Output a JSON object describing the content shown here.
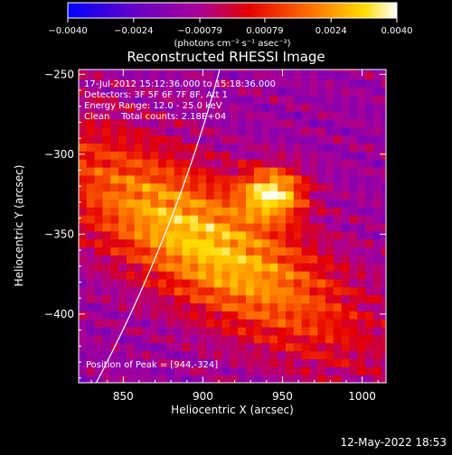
{
  "chart_data": {
    "type": "heatmap",
    "title": "Reconstructed RHESSI Image",
    "xlabel": "Heliocentric X (arcsec)",
    "ylabel": "Heliocentric Y (arcsec)",
    "xlim": [
      822,
      1015
    ],
    "ylim": [
      -443,
      -247
    ],
    "xticks": [
      850,
      900,
      950,
      1000
    ],
    "yticks": [
      -250,
      -300,
      -350,
      -400
    ],
    "colorbar": {
      "min": -0.004,
      "max": 0.004,
      "tick_values": [
        -0.004,
        -0.0024,
        -0.00079,
        0.00079,
        0.0024,
        0.004
      ],
      "tick_labels": [
        "-0.0040",
        "-0.0024",
        "-0.00079",
        "0.00079",
        "0.0024",
        "0.0040"
      ],
      "units_label": "(photons cm⁻² s⁻¹ asec⁻²)"
    },
    "info_lines": [
      "17-Jul-2012 15:12:36.000 to 15:18:36.000",
      "Detectors: 3F 5F 6F 7F 8F, Att 1",
      "Energy Range: 12.0 - 25.0 keV",
      "Clean    Total counts: 2.18E+04"
    ],
    "peak_label": "Position of Peak = [944,-324]",
    "peak_position": [
      944,
      -324
    ],
    "grid": false,
    "colors": {
      "background": "#000000",
      "limb": "#ffffff",
      "colormap": [
        "#0000ff",
        "#6400c8",
        "#aa0096",
        "#e60000",
        "#ff7800",
        "#ffdc00",
        "#ffffff"
      ]
    }
  },
  "timestamp": "12-May-2022 18:53"
}
